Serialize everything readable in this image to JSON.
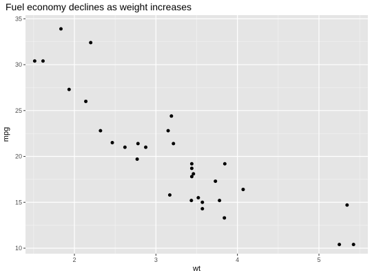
{
  "chart_data": {
    "type": "scatter",
    "title": "Fuel economy declines as weight increases",
    "xlabel": "wt",
    "ylabel": "mpg",
    "xlim": [
      1.4,
      5.6
    ],
    "ylim": [
      9.4,
      35.4
    ],
    "x_ticks": [
      2,
      3,
      4,
      5
    ],
    "y_ticks": [
      10,
      15,
      20,
      25,
      30,
      35
    ],
    "grid": true,
    "legend": "none",
    "colors": {
      "panel_background": "#e5e5e5",
      "grid_major": "#ffffff",
      "grid_minor": "#f2f2f2",
      "point": "#000000"
    },
    "points": [
      {
        "x": 2.62,
        "y": 21.0
      },
      {
        "x": 2.875,
        "y": 21.0
      },
      {
        "x": 2.32,
        "y": 22.8
      },
      {
        "x": 3.215,
        "y": 21.4
      },
      {
        "x": 3.44,
        "y": 18.7
      },
      {
        "x": 3.46,
        "y": 18.1
      },
      {
        "x": 3.57,
        "y": 14.3
      },
      {
        "x": 3.19,
        "y": 24.4
      },
      {
        "x": 3.15,
        "y": 22.8
      },
      {
        "x": 3.44,
        "y": 19.2
      },
      {
        "x": 3.44,
        "y": 17.8
      },
      {
        "x": 4.07,
        "y": 16.4
      },
      {
        "x": 3.73,
        "y": 17.3
      },
      {
        "x": 3.78,
        "y": 15.2
      },
      {
        "x": 5.25,
        "y": 10.4
      },
      {
        "x": 5.424,
        "y": 10.4
      },
      {
        "x": 5.345,
        "y": 14.7
      },
      {
        "x": 2.2,
        "y": 32.4
      },
      {
        "x": 1.615,
        "y": 30.4
      },
      {
        "x": 1.835,
        "y": 33.9
      },
      {
        "x": 2.465,
        "y": 21.5
      },
      {
        "x": 3.52,
        "y": 15.5
      },
      {
        "x": 3.435,
        "y": 15.2
      },
      {
        "x": 3.84,
        "y": 13.3
      },
      {
        "x": 3.845,
        "y": 19.2
      },
      {
        "x": 1.935,
        "y": 27.3
      },
      {
        "x": 2.14,
        "y": 26.0
      },
      {
        "x": 1.513,
        "y": 30.4
      },
      {
        "x": 3.17,
        "y": 15.8
      },
      {
        "x": 2.77,
        "y": 19.7
      },
      {
        "x": 3.57,
        "y": 15.0
      },
      {
        "x": 2.78,
        "y": 21.4
      }
    ]
  }
}
